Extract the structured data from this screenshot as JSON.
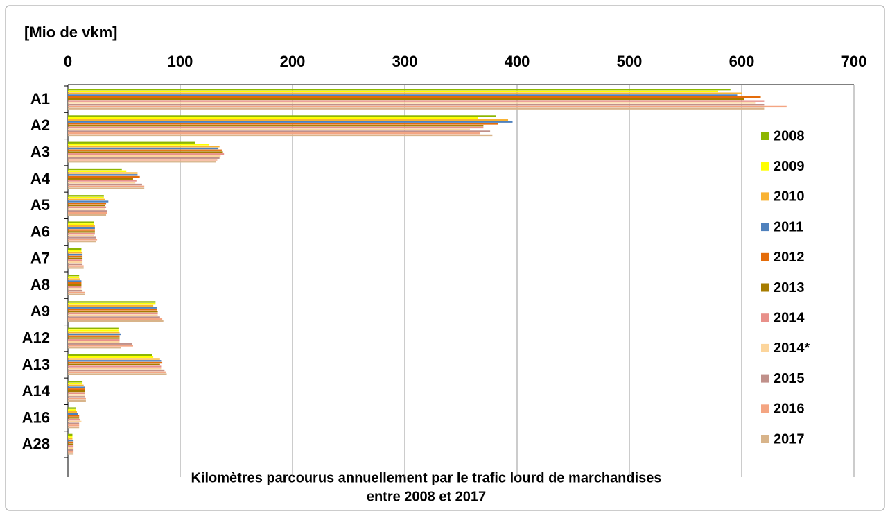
{
  "chart_data": {
    "type": "hbar",
    "title": "Kilomètres parcourus annuellement par le trafic lourd de marchandises",
    "subtitle": "entre 2008 et 2017",
    "x_label": "[Mio de vkm]",
    "categories": [
      "A1",
      "A2",
      "A3",
      "A4",
      "A5",
      "A6",
      "A7",
      "A8",
      "A9",
      "A12",
      "A13",
      "A14",
      "A16",
      "A28"
    ],
    "xlim": [
      0,
      700
    ],
    "xticks": [
      0,
      100,
      200,
      300,
      400,
      500,
      600,
      700
    ],
    "grid": true,
    "legend": "right",
    "series": [
      {
        "name": "2008",
        "color": "#8db600",
        "values": [
          590,
          381,
          113,
          48,
          32,
          23,
          12,
          10,
          78,
          45,
          75,
          13,
          7,
          4
        ]
      },
      {
        "name": "2009",
        "color": "#ffff00",
        "values": [
          579,
          365,
          126,
          52,
          32,
          23,
          12,
          10,
          78,
          45,
          76,
          13,
          7,
          4
        ]
      },
      {
        "name": "2010",
        "color": "#f9b233",
        "values": [
          600,
          392,
          135,
          62,
          33,
          24,
          13,
          11,
          76,
          46,
          82,
          14,
          8,
          4
        ]
      },
      {
        "name": "2011",
        "color": "#4f81bd",
        "values": [
          596,
          396,
          134,
          62,
          36,
          24,
          13,
          12,
          79,
          47,
          83,
          15,
          9,
          5
        ]
      },
      {
        "name": "2012",
        "color": "#e46c0a",
        "values": [
          617,
          383,
          137,
          64,
          34,
          24,
          13,
          12,
          79,
          46,
          84,
          15,
          10,
          5
        ]
      },
      {
        "name": "2013",
        "color": "#a67c00",
        "values": [
          602,
          370,
          138,
          58,
          33,
          24,
          13,
          12,
          80,
          46,
          82,
          15,
          10,
          5
        ]
      },
      {
        "name": "2014",
        "color": "#e8908a",
        "values": [
          620,
          370,
          139,
          61,
          34,
          24,
          13,
          12,
          80,
          46,
          83,
          15,
          11,
          5
        ]
      },
      {
        "name": "2014*",
        "color": "#fcd59c",
        "values": [
          612,
          358,
          136,
          60,
          33,
          23,
          13,
          12,
          80,
          46,
          83,
          15,
          12,
          5
        ]
      },
      {
        "name": "2015",
        "color": "#c0908a",
        "values": [
          620,
          376,
          135,
          66,
          35,
          25,
          13,
          13,
          82,
          57,
          86,
          15,
          10,
          5
        ]
      },
      {
        "name": "2016",
        "color": "#f4a582",
        "values": [
          640,
          367,
          133,
          68,
          35,
          26,
          14,
          15,
          84,
          58,
          87,
          16,
          10,
          5
        ]
      },
      {
        "name": "2017",
        "color": "#d8b48a",
        "values": [
          620,
          378,
          132,
          68,
          34,
          25,
          14,
          15,
          85,
          47,
          88,
          16,
          10,
          5
        ]
      }
    ]
  }
}
